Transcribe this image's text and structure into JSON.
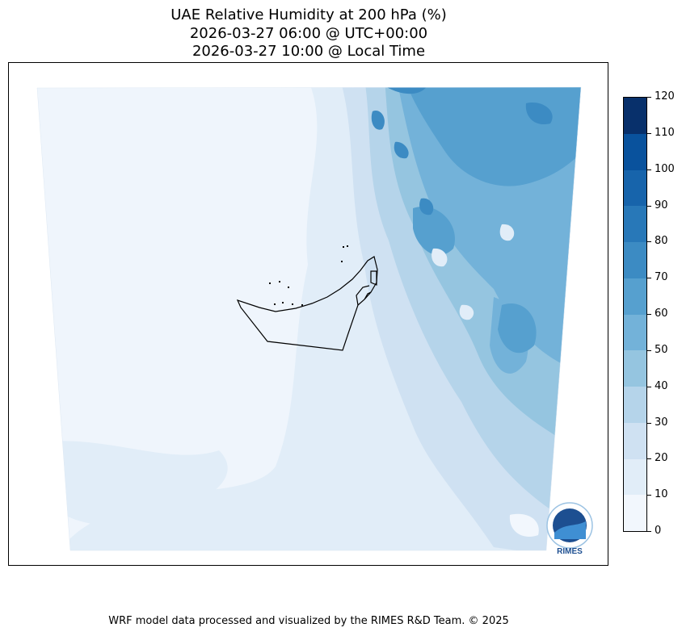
{
  "title": {
    "line1": "UAE Relative Humidity at 200 hPa (%)",
    "line2": "2026-03-27 06:00 @ UTC+00:00",
    "line3": "2026-03-27 10:00 @ Local Time"
  },
  "colorbar": {
    "ticks": [
      "0",
      "10",
      "20",
      "30",
      "40",
      "50",
      "60",
      "70",
      "80",
      "90",
      "100",
      "110",
      "120"
    ],
    "colors": [
      "#f2f7fd",
      "#e1edf8",
      "#cfe1f2",
      "#b5d4ea",
      "#95c5e0",
      "#73b2d9",
      "#56a0cf",
      "#3c8bc3",
      "#2878b8",
      "#1764ab",
      "#09529d",
      "#08306b"
    ],
    "range": [
      0,
      120
    ]
  },
  "logo": {
    "text": "RIMES"
  },
  "footer": "WRF model data processed and visualized by the RIMES R&D Team. © 2025"
}
